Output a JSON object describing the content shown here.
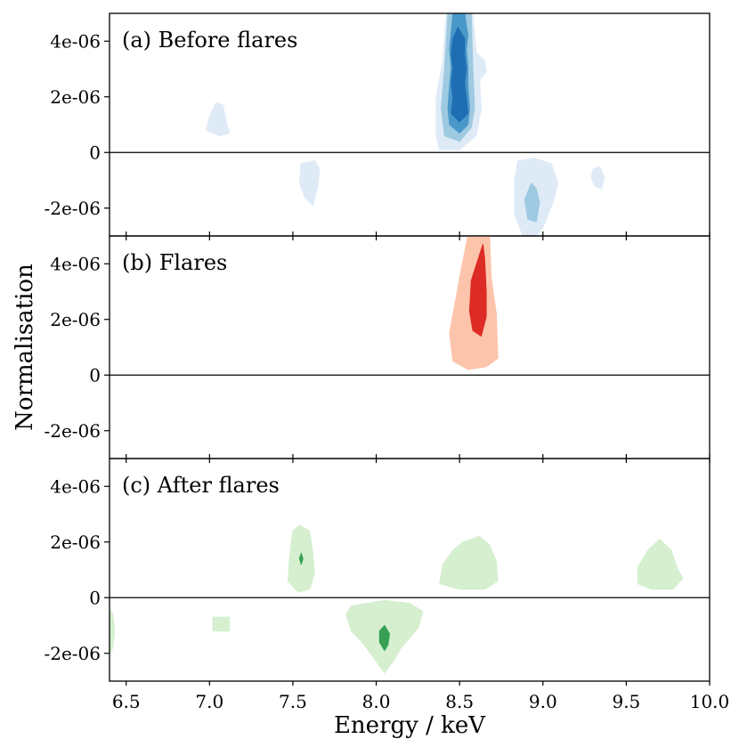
{
  "chart_data": {
    "type": "contour",
    "xlabel": "Energy / keV",
    "ylabel": "Normalisation",
    "xlim": [
      6.4,
      10.0
    ],
    "x_ticks": [
      6.5,
      7.0,
      7.5,
      8.0,
      8.5,
      9.0,
      9.5,
      10.0
    ],
    "x_tick_labels": [
      "6.5",
      "7.0",
      "7.5",
      "8.0",
      "8.5",
      "9.0",
      "9.5",
      "10.0"
    ],
    "ylim": [
      -3e-06,
      5e-06
    ],
    "y_ticks": [
      4e-06,
      2e-06,
      0,
      -2e-06
    ],
    "y_tick_labels": [
      "4e-06",
      "2e-06",
      "0",
      "-2e-06"
    ],
    "panels": [
      {
        "label": "(a) Before flares",
        "colormap": "blues",
        "level_colors": [
          "#deebf7",
          "#9ecae1",
          "#4a98c9",
          "#1f6eb3"
        ],
        "regions": [
          {
            "level": 0,
            "points": [
              [
                8.42,
                5e-06
              ],
              [
                8.58,
                5e-06
              ],
              [
                8.6,
                3.6e-06
              ],
              [
                8.65,
                3.3e-06
              ],
              [
                8.66,
                2.9e-06
              ],
              [
                8.62,
                2.6e-06
              ],
              [
                8.63,
                1.6e-06
              ],
              [
                8.6,
                6e-07
              ],
              [
                8.5,
                1e-07
              ],
              [
                8.38,
                1e-07
              ],
              [
                8.36,
                6e-07
              ],
              [
                8.36,
                2e-06
              ],
              [
                8.4,
                3.3e-06
              ]
            ]
          },
          {
            "level": 1,
            "points": [
              [
                8.43,
                5e-06
              ],
              [
                8.57,
                5e-06
              ],
              [
                8.58,
                3e-06
              ],
              [
                8.59,
                1.6e-06
              ],
              [
                8.57,
                9e-07
              ],
              [
                8.5,
                4e-07
              ],
              [
                8.41,
                6e-07
              ],
              [
                8.39,
                1.6e-06
              ],
              [
                8.41,
                3e-06
              ]
            ]
          },
          {
            "level": 2,
            "points": [
              [
                8.46,
                5e-06
              ],
              [
                8.53,
                5e-06
              ],
              [
                8.55,
                4.2e-06
              ],
              [
                8.54,
                3.7e-06
              ],
              [
                8.55,
                3.1e-06
              ],
              [
                8.55,
                2.4e-06
              ],
              [
                8.56,
                1.6e-06
              ],
              [
                8.55,
                1e-06
              ],
              [
                8.5,
                7e-07
              ],
              [
                8.44,
                1e-06
              ],
              [
                8.43,
                1.6e-06
              ],
              [
                8.44,
                2.4e-06
              ],
              [
                8.45,
                3.1e-06
              ],
              [
                8.44,
                3.7e-06
              ]
            ]
          },
          {
            "level": 3,
            "points": [
              [
                8.49,
                4.5e-06
              ],
              [
                8.53,
                4.1e-06
              ],
              [
                8.53,
                3.5e-06
              ],
              [
                8.54,
                3e-06
              ],
              [
                8.53,
                2.5e-06
              ],
              [
                8.54,
                2e-06
              ],
              [
                8.55,
                1.4e-06
              ],
              [
                8.5,
                1.1e-06
              ],
              [
                8.45,
                1.4e-06
              ],
              [
                8.46,
                2e-06
              ],
              [
                8.45,
                2.5e-06
              ],
              [
                8.46,
                3e-06
              ],
              [
                8.45,
                3.5e-06
              ],
              [
                8.46,
                4.1e-06
              ]
            ]
          },
          {
            "level": 0,
            "points": [
              [
                7.0,
                1.3e-06
              ],
              [
                7.04,
                1.8e-06
              ],
              [
                7.08,
                1.7e-06
              ],
              [
                7.1,
                1.1e-06
              ],
              [
                7.12,
                7e-07
              ],
              [
                7.06,
                6e-07
              ],
              [
                6.98,
                8e-07
              ]
            ]
          },
          {
            "level": 0,
            "points": [
              [
                7.55,
                -4e-07
              ],
              [
                7.63,
                -3e-07
              ],
              [
                7.66,
                -6e-07
              ],
              [
                7.65,
                -1.2e-06
              ],
              [
                7.62,
                -1.9e-06
              ],
              [
                7.57,
                -1.6e-06
              ],
              [
                7.54,
                -1.1e-06
              ]
            ]
          },
          {
            "level": 0,
            "points": [
              [
                8.85,
                -3e-07
              ],
              [
                8.95,
                -2e-07
              ],
              [
                9.05,
                -4e-07
              ],
              [
                9.09,
                -1.1e-06
              ],
              [
                9.06,
                -1.8e-06
              ],
              [
                9.0,
                -2.7e-06
              ],
              [
                8.96,
                -3e-06
              ],
              [
                8.88,
                -3e-06
              ],
              [
                8.83,
                -2.2e-06
              ],
              [
                8.83,
                -1e-06
              ]
            ]
          },
          {
            "level": 1,
            "points": [
              [
                8.93,
                -1.1e-06
              ],
              [
                8.96,
                -1.3e-06
              ],
              [
                8.98,
                -1.8e-06
              ],
              [
                8.96,
                -2.5e-06
              ],
              [
                8.91,
                -2.4e-06
              ],
              [
                8.89,
                -1.7e-06
              ]
            ]
          },
          {
            "level": 0,
            "points": [
              [
                9.3,
                -6e-07
              ],
              [
                9.34,
                -5e-07
              ],
              [
                9.37,
                -9e-07
              ],
              [
                9.35,
                -1.3e-06
              ],
              [
                9.31,
                -1.2e-06
              ],
              [
                9.29,
                -9e-07
              ]
            ]
          }
        ]
      },
      {
        "label": "(b) Flares",
        "colormap": "reds",
        "level_colors": [
          "#fcc5ab",
          "#dd2b25"
        ],
        "regions": [
          {
            "level": 0,
            "points": [
              [
                8.55,
                5e-06
              ],
              [
                8.68,
                5e-06
              ],
              [
                8.69,
                3.5e-06
              ],
              [
                8.72,
                2.2e-06
              ],
              [
                8.73,
                6e-07
              ],
              [
                8.66,
                3e-07
              ],
              [
                8.55,
                2e-07
              ],
              [
                8.46,
                5e-07
              ],
              [
                8.44,
                1.5e-06
              ],
              [
                8.47,
                2.5e-06
              ],
              [
                8.51,
                3.8e-06
              ]
            ]
          },
          {
            "level": 1,
            "points": [
              [
                8.64,
                4.7e-06
              ],
              [
                8.65,
                4.2e-06
              ],
              [
                8.66,
                3e-06
              ],
              [
                8.66,
                2.1e-06
              ],
              [
                8.63,
                1.4e-06
              ],
              [
                8.58,
                1.6e-06
              ],
              [
                8.56,
                2.3e-06
              ],
              [
                8.57,
                3.4e-06
              ]
            ]
          }
        ]
      },
      {
        "label": "(c) After flares",
        "colormap": "greens",
        "level_colors": [
          "#d5efcf",
          "#37a055"
        ],
        "regions": [
          {
            "level": 0,
            "points": [
              [
                7.5,
                2.4e-06
              ],
              [
                7.54,
                2.6e-06
              ],
              [
                7.6,
                2.4e-06
              ],
              [
                7.62,
                1.6e-06
              ],
              [
                7.63,
                9e-07
              ],
              [
                7.6,
                3e-07
              ],
              [
                7.53,
                2e-07
              ],
              [
                7.47,
                6e-07
              ],
              [
                7.48,
                1.4e-06
              ]
            ]
          },
          {
            "level": 1,
            "points": [
              [
                7.55,
                1.6e-06
              ],
              [
                7.56,
                1.4e-06
              ],
              [
                7.55,
                1.2e-06
              ],
              [
                7.54,
                1.4e-06
              ]
            ]
          },
          {
            "level": 0,
            "points": [
              [
                8.52,
                2e-06
              ],
              [
                8.62,
                2.2e-06
              ],
              [
                8.68,
                1.9e-06
              ],
              [
                8.72,
                1.3e-06
              ],
              [
                8.73,
                6e-07
              ],
              [
                8.65,
                3e-07
              ],
              [
                8.5,
                3e-07
              ],
              [
                8.38,
                5e-07
              ],
              [
                8.4,
                1.2e-06
              ],
              [
                8.46,
                1.7e-06
              ]
            ]
          },
          {
            "level": 0,
            "points": [
              [
                9.63,
                1.7e-06
              ],
              [
                9.7,
                2.1e-06
              ],
              [
                9.77,
                1.7e-06
              ],
              [
                9.81,
                1e-06
              ],
              [
                9.84,
                7e-07
              ],
              [
                9.78,
                3e-07
              ],
              [
                9.65,
                3e-07
              ],
              [
                9.57,
                5e-07
              ],
              [
                9.57,
                1.1e-06
              ]
            ]
          },
          {
            "level": 0,
            "points": [
              [
                6.4,
                -4e-07
              ],
              [
                6.42,
                -6e-07
              ],
              [
                6.43,
                -1.2e-06
              ],
              [
                6.42,
                -1.8e-06
              ],
              [
                6.4,
                -2e-06
              ]
            ]
          },
          {
            "level": 0,
            "points": [
              [
                7.02,
                -7e-07
              ],
              [
                7.12,
                -7e-07
              ],
              [
                7.12,
                -1.2e-06
              ],
              [
                7.02,
                -1.2e-06
              ]
            ]
          },
          {
            "level": 0,
            "points": [
              [
                7.85,
                -3e-07
              ],
              [
                8.05,
                -1e-07
              ],
              [
                8.2,
                -2e-07
              ],
              [
                8.28,
                -5e-07
              ],
              [
                8.25,
                -1.1e-06
              ],
              [
                8.15,
                -1.8e-06
              ],
              [
                8.1,
                -2.3e-06
              ],
              [
                8.05,
                -2.7e-06
              ],
              [
                8.0,
                -2.3e-06
              ],
              [
                7.93,
                -1.7e-06
              ],
              [
                7.85,
                -1.2e-06
              ],
              [
                7.82,
                -6e-07
              ]
            ]
          },
          {
            "level": 1,
            "points": [
              [
                8.05,
                -1e-06
              ],
              [
                8.08,
                -1.3e-06
              ],
              [
                8.07,
                -1.7e-06
              ],
              [
                8.05,
                -1.9e-06
              ],
              [
                8.02,
                -1.6e-06
              ],
              [
                8.02,
                -1.2e-06
              ]
            ]
          }
        ]
      }
    ]
  }
}
